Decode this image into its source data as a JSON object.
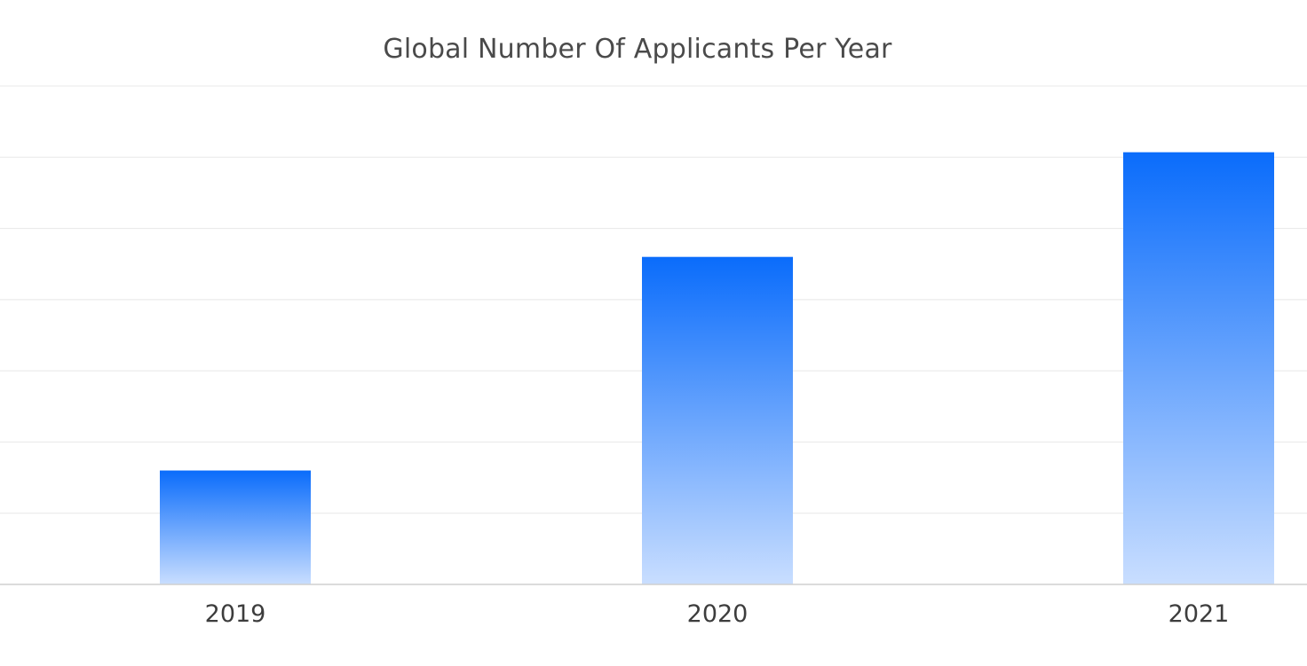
{
  "chart_data": {
    "type": "bar",
    "title": "Global Number Of Applicants Per Year",
    "categories": [
      "2019",
      "2020",
      "2021"
    ],
    "values": [
      1.6,
      4.6,
      6.07
    ],
    "ylim": [
      0,
      7
    ],
    "grid": true,
    "legend": "none",
    "colors": {
      "bar_top": "#0a6cfb",
      "bar_bottom": "#c9deff",
      "grid": "#e8e8e8",
      "axis": "#cfcfcf",
      "text": "#3d3d3d"
    }
  }
}
